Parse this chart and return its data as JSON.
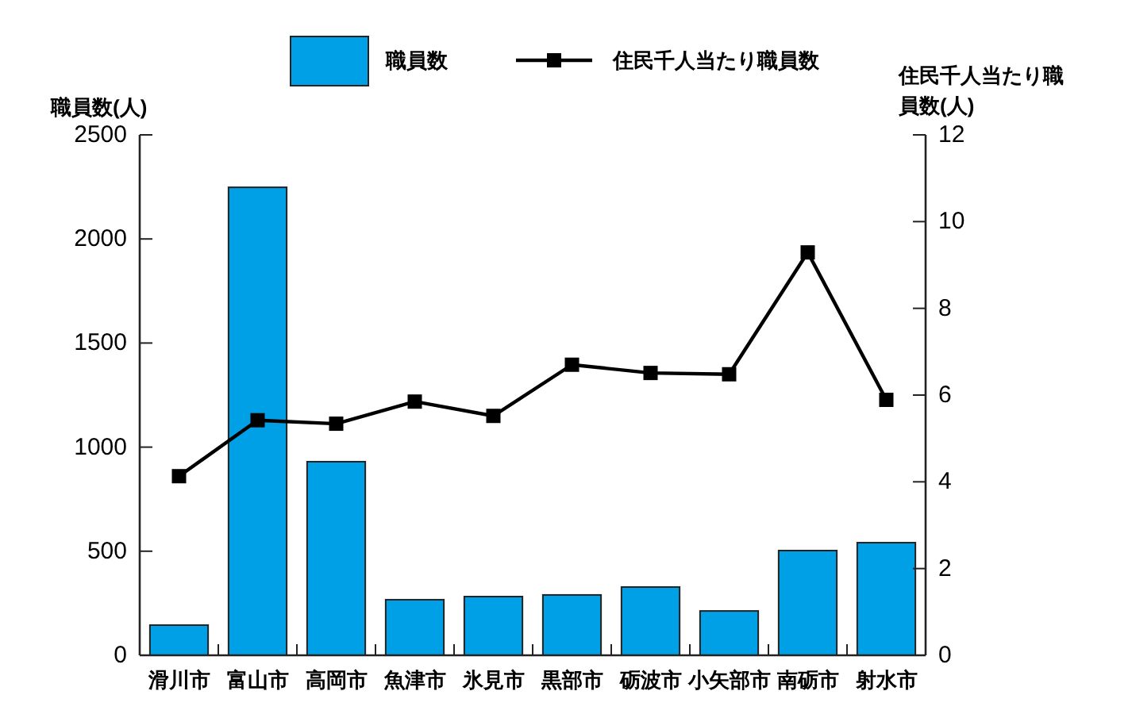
{
  "chart_data": {
    "type": "bar",
    "categories": [
      "滑川市",
      "富山市",
      "高岡市",
      "魚津市",
      "氷見市",
      "黒部市",
      "砺波市",
      "小矢部市",
      "南砺市",
      "射水市"
    ],
    "series": [
      {
        "name": "職員数",
        "color": "#00a0e6",
        "values": [
          145,
          2248,
          930,
          267,
          282,
          290,
          328,
          213,
          503,
          541
        ]
      },
      {
        "name": "住民千人当たり職員数",
        "type": "line",
        "axis": "y2",
        "color": "#000000",
        "marker": "square",
        "values": [
          4.13,
          5.42,
          5.34,
          5.85,
          5.52,
          6.7,
          6.51,
          6.48,
          9.29,
          5.89
        ]
      }
    ],
    "ylabel": "職員数(人)",
    "y2label": "住民千人当たり職員数(人)",
    "ylim": [
      0,
      2500
    ],
    "yticks": [
      0,
      500,
      1000,
      1500,
      2000,
      2500
    ],
    "y2lim": [
      0,
      12
    ],
    "y2ticks": [
      0,
      2,
      4,
      6,
      8,
      10,
      12
    ],
    "grid": false,
    "legend": "top"
  }
}
